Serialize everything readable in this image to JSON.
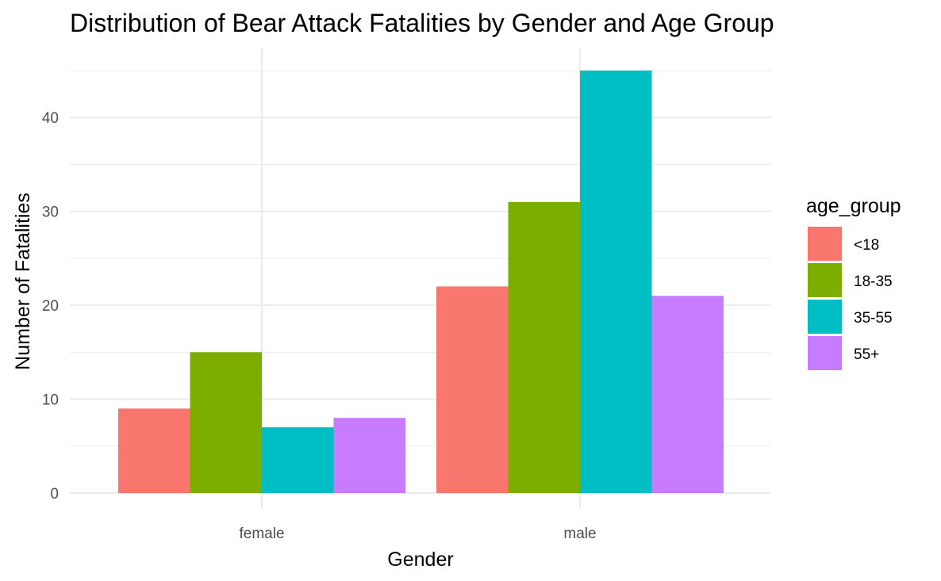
{
  "chart_data": {
    "type": "bar",
    "title": "Distribution of Bear Attack Fatalities by Gender and Age Group",
    "xlabel": "Gender",
    "ylabel": "Number of Fatalities",
    "categories": [
      "female",
      "male"
    ],
    "series": [
      {
        "name": "<18",
        "values": [
          9,
          22
        ],
        "color": "#F8766D"
      },
      {
        "name": "18-35",
        "values": [
          15,
          31
        ],
        "color": "#7CAE00"
      },
      {
        "name": "35-55",
        "values": [
          7,
          45
        ],
        "color": "#00BFC4"
      },
      {
        "name": "55+",
        "values": [
          8,
          21
        ],
        "color": "#C77CFF"
      }
    ],
    "ylim": [
      0,
      45
    ],
    "yticks": [
      0,
      10,
      20,
      30,
      40
    ],
    "grid": true,
    "legend": {
      "title": "age_group",
      "position": "right"
    }
  }
}
